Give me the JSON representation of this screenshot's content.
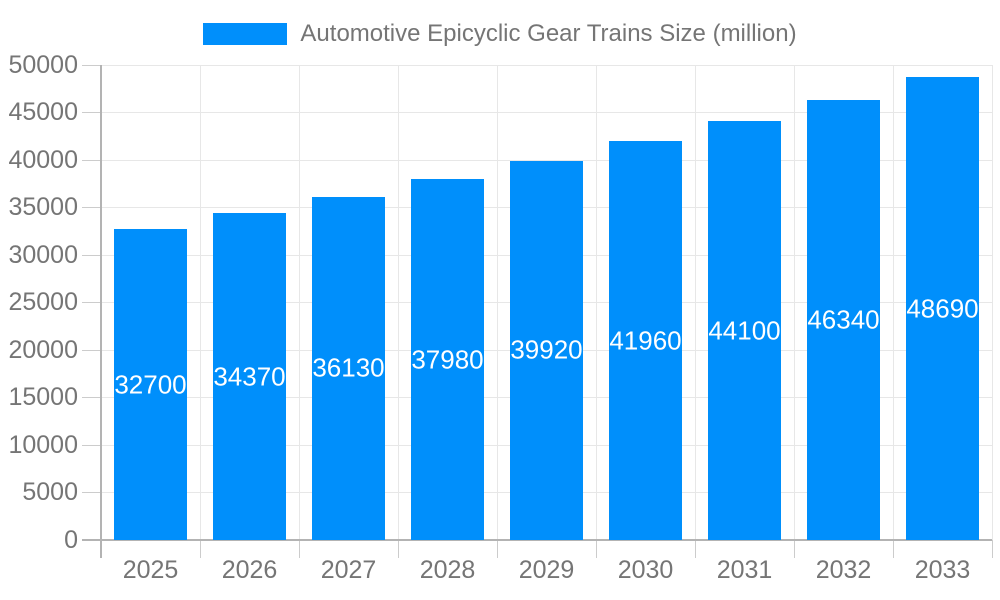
{
  "chart_data": {
    "type": "bar",
    "title": "Automotive Epicyclic Gear Trains Size (million)",
    "categories": [
      "2025",
      "2026",
      "2027",
      "2028",
      "2029",
      "2030",
      "2031",
      "2032",
      "2033"
    ],
    "series": [
      {
        "name": "Automotive Epicyclic Gear Trains Size (million)",
        "values": [
          32700,
          34370,
          36130,
          37980,
          39920,
          41960,
          44100,
          46340,
          48690
        ]
      }
    ],
    "xlabel": "",
    "ylabel": "",
    "ylim": [
      0,
      50000
    ],
    "y_ticks": [
      0,
      5000,
      10000,
      15000,
      20000,
      25000,
      30000,
      35000,
      40000,
      45000,
      50000
    ],
    "grid": true,
    "legend_position": "top",
    "bar_labels_inside": true,
    "colors": {
      "bar": "#008FFB",
      "bar_label_text": "#FFFFFF",
      "axis_text": "#757575",
      "grid_line": "#E7E7E7",
      "axis_line": "#B3B3B3",
      "tick_line": "#CCCCCC",
      "background": "#FFFFFF"
    }
  }
}
